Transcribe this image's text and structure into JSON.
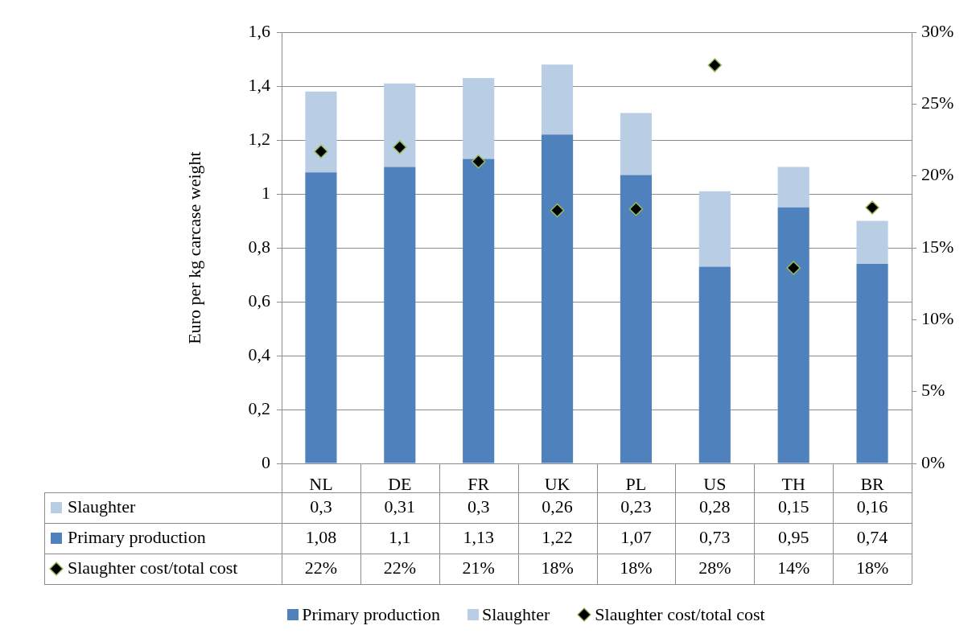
{
  "chart_data": {
    "type": "bar",
    "stacked": true,
    "ylabel": "Euro per kg carcase weight",
    "categories": [
      "NL",
      "DE",
      "FR",
      "UK",
      "PL",
      "US",
      "TH",
      "BR"
    ],
    "series": [
      {
        "name": "Primary production",
        "color": "#4f81bd",
        "values": [
          1.08,
          1.1,
          1.13,
          1.22,
          1.07,
          0.73,
          0.95,
          0.74
        ],
        "value_labels": [
          "1,08",
          "1,1",
          "1,13",
          "1,22",
          "1,07",
          "0,73",
          "0,95",
          "0,74"
        ]
      },
      {
        "name": "Slaughter",
        "color": "#b9cde5",
        "values": [
          0.3,
          0.31,
          0.3,
          0.26,
          0.23,
          0.28,
          0.15,
          0.16
        ],
        "value_labels": [
          "0,3",
          "0,31",
          "0,3",
          "0,26",
          "0,23",
          "0,28",
          "0,15",
          "0,16"
        ]
      },
      {
        "name": "Slaughter cost/total cost",
        "type": "scatter",
        "axis": "y2",
        "color": "#000000",
        "values": [
          21.7,
          22.0,
          21.0,
          17.6,
          17.7,
          27.7,
          13.6,
          17.8
        ],
        "value_labels": [
          "22%",
          "22%",
          "21%",
          "18%",
          "18%",
          "28%",
          "14%",
          "18%"
        ]
      }
    ],
    "marker": "diamond",
    "ylim": [
      0,
      1.6
    ],
    "yticks": [
      {
        "value": 0,
        "label": "0"
      },
      {
        "value": 0.2,
        "label": "0,2"
      },
      {
        "value": 0.4,
        "label": "0,4"
      },
      {
        "value": 0.6,
        "label": "0,6"
      },
      {
        "value": 0.8,
        "label": "0,8"
      },
      {
        "value": 1,
        "label": "1"
      },
      {
        "value": 1.2,
        "label": "1,2"
      },
      {
        "value": 1.4,
        "label": "1,4"
      },
      {
        "value": 1.6,
        "label": "1,6"
      }
    ],
    "y2lim": [
      0,
      30
    ],
    "y2ticks": [
      {
        "value": 0,
        "label": "0%"
      },
      {
        "value": 5,
        "label": "5%"
      },
      {
        "value": 10,
        "label": "10%"
      },
      {
        "value": 15,
        "label": "15%"
      },
      {
        "value": 20,
        "label": "20%"
      },
      {
        "value": 25,
        "label": "25%"
      },
      {
        "value": 30,
        "label": "30%"
      }
    ],
    "grid": "y",
    "legend": "bottom"
  }
}
